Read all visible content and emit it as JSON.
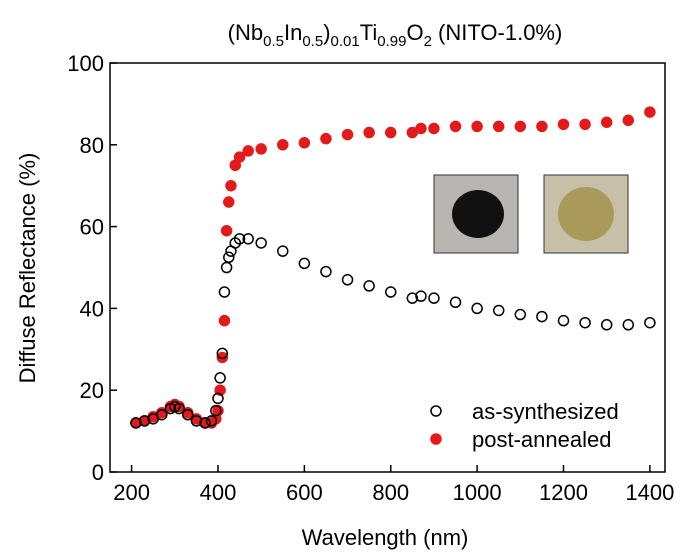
{
  "chart_data": {
    "type": "scatter",
    "title": [
      {
        "text": "(Nb"
      },
      {
        "text": "0.5",
        "sub": true
      },
      {
        "text": "In"
      },
      {
        "text": "0.5",
        "sub": true
      },
      {
        "text": ")"
      },
      {
        "text": "0.01",
        "sub": true
      },
      {
        "text": "Ti"
      },
      {
        "text": "0.99",
        "sub": true
      },
      {
        "text": "O"
      },
      {
        "text": "2",
        "sub": true
      },
      {
        "text": " (NITO-1.0%)"
      }
    ],
    "x_label": "Wavelength (nm)",
    "y_label": "Diffuse Reflectance (%)",
    "x": [
      210,
      230,
      250,
      270,
      290,
      300,
      310,
      330,
      350,
      370,
      385,
      395,
      400,
      405,
      410,
      415,
      420,
      425,
      430,
      440,
      450,
      470,
      500,
      550,
      600,
      650,
      700,
      750,
      800,
      850,
      870,
      900,
      950,
      1000,
      1050,
      1100,
      1150,
      1200,
      1250,
      1300,
      1350,
      1400
    ],
    "series": [
      {
        "name": "as-synthesized",
        "color": "#000000",
        "filled": false,
        "values": [
          12,
          12.5,
          13,
          14,
          15.5,
          16,
          15.5,
          14,
          12.5,
          12,
          12.5,
          15,
          18,
          23,
          29,
          44,
          50,
          52.5,
          54,
          56,
          57,
          57,
          56,
          54,
          51,
          49,
          47,
          45.5,
          44,
          42.5,
          43,
          42.5,
          41.5,
          40,
          39.5,
          38.5,
          38,
          37,
          36.5,
          36,
          36,
          36.5
        ]
      },
      {
        "name": "post-annealed",
        "color": "#e31a1c",
        "filled": true,
        "values": [
          12,
          12.5,
          13.5,
          14.5,
          16,
          16.5,
          16,
          14.5,
          13,
          12,
          12,
          13,
          15,
          20,
          28,
          37,
          59,
          66,
          70,
          75,
          77,
          78.5,
          79,
          80,
          80.5,
          81.5,
          82.5,
          83,
          83,
          83,
          84,
          84,
          84.5,
          84.5,
          84.5,
          84.5,
          84.5,
          85,
          85,
          85.5,
          86,
          88
        ]
      }
    ],
    "xlim": [
      150,
      1435
    ],
    "ylim": [
      0,
      100
    ],
    "xticks": [
      200,
      400,
      600,
      800,
      1000,
      1200,
      1400
    ],
    "yticks": [
      0,
      20,
      40,
      60,
      80,
      100
    ],
    "legend": "lower right"
  }
}
